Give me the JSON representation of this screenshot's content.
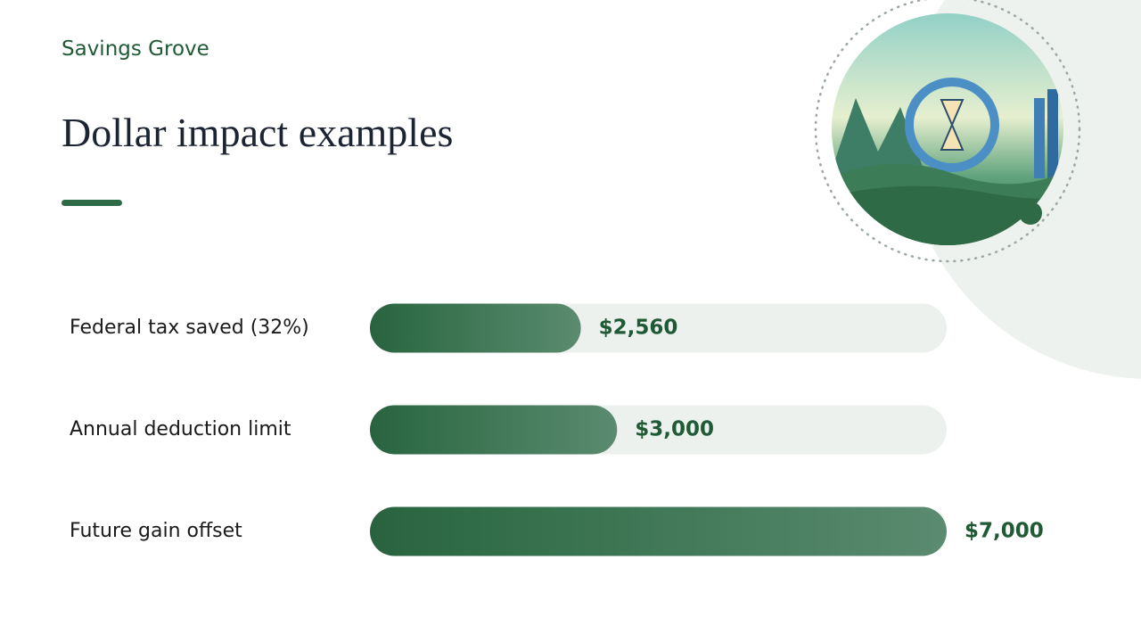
{
  "brand": "Savings Grove",
  "chart_data": {
    "type": "bar",
    "orientation": "horizontal",
    "title": "Dollar impact examples",
    "categories": [
      "Federal tax saved (32%)",
      "Annual deduction limit",
      "Future gain offset"
    ],
    "values": [
      2560,
      3000,
      7000
    ],
    "value_labels": [
      "$2,560",
      "$3,000",
      "$7,000"
    ],
    "color": "#2d6a45"
  }
}
